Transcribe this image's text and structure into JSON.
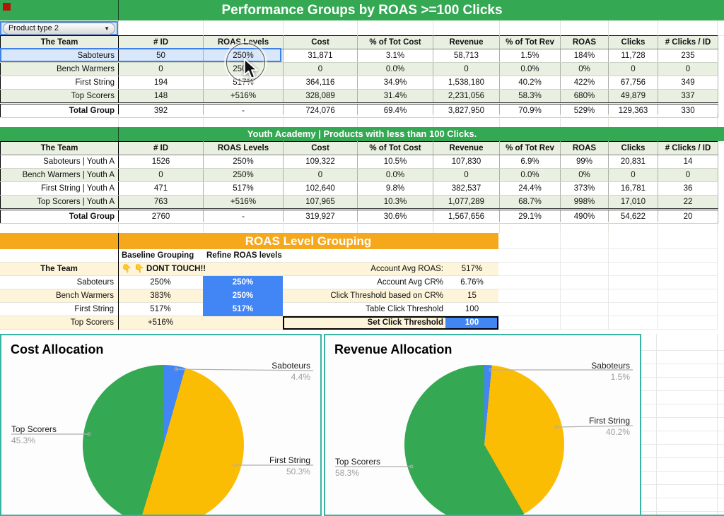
{
  "banner1": "Performance Groups by ROAS >=100 Clicks",
  "dropdown": {
    "value": "Product type 2",
    "arrow_icon": "▼"
  },
  "table1": {
    "columns": [
      "The Team",
      "# ID",
      "ROAS Levels",
      "Cost",
      "% of Tot Cost",
      "Revenue",
      "% of Tot Rev",
      "ROAS",
      "Clicks",
      "# Clicks / ID"
    ],
    "rows": [
      [
        "Saboteurs",
        "50",
        "250%",
        "31,871",
        "3.1%",
        "58,713",
        "1.5%",
        "184%",
        "11,728",
        "235"
      ],
      [
        "Bench Warmers",
        "0",
        "250%",
        "0",
        "0.0%",
        "0",
        "0.0%",
        "0%",
        "0",
        "0"
      ],
      [
        "First String",
        "194",
        "517%",
        "364,116",
        "34.9%",
        "1,538,180",
        "40.2%",
        "422%",
        "67,756",
        "349"
      ],
      [
        "Top Scorers",
        "148",
        "+516%",
        "328,089",
        "31.4%",
        "2,231,056",
        "58.3%",
        "680%",
        "49,879",
        "337"
      ],
      [
        "Total Group",
        "392",
        "-",
        "724,076",
        "69.4%",
        "3,827,950",
        "70.9%",
        "529%",
        "129,363",
        "330"
      ]
    ]
  },
  "table2": {
    "banner": "Youth Academy | Products with less than 100 Clicks.",
    "columns": [
      "The Team",
      "# ID",
      "ROAS Levels",
      "Cost",
      "% of Tot Cost",
      "Revenue",
      "% of Tot Rev",
      "ROAS",
      "Clicks",
      "# Clicks / ID"
    ],
    "rows": [
      [
        "Saboteurs | Youth A",
        "1526",
        "250%",
        "109,322",
        "10.5%",
        "107,830",
        "6.9%",
        "99%",
        "20,831",
        "14"
      ],
      [
        "Bench Warmers | Youth A",
        "0",
        "250%",
        "0",
        "0.0%",
        "0",
        "0.0%",
        "0%",
        "0",
        "0"
      ],
      [
        "First String | Youth A",
        "471",
        "517%",
        "102,640",
        "9.8%",
        "382,537",
        "24.4%",
        "373%",
        "16,781",
        "36"
      ],
      [
        "Top Scorers | Youth A",
        "763",
        "+516%",
        "107,965",
        "10.3%",
        "1,077,289",
        "68.7%",
        "998%",
        "17,010",
        "22"
      ],
      [
        "Total Group",
        "2760",
        "-",
        "319,927",
        "30.6%",
        "1,567,656",
        "29.1%",
        "490%",
        "54,622",
        "20"
      ]
    ]
  },
  "grouping": {
    "banner": "ROAS Level Grouping",
    "baseline_header": "Baseline Grouping",
    "refine_header": "Refine ROAS levels",
    "team_header": "The Team",
    "dont_touch": "👇 👇  DONT TOUCH!!",
    "rows": [
      {
        "team": "Saboteurs",
        "baseline": "250%",
        "refine": "250%"
      },
      {
        "team": "Bench Warmers",
        "baseline": "383%",
        "refine": "250%"
      },
      {
        "team": "First String",
        "baseline": "517%",
        "refine": "517%"
      },
      {
        "team": "Top Scorers",
        "baseline": "+516%",
        "refine": ""
      }
    ],
    "stats": [
      {
        "label": "Account Avg ROAS:",
        "value": "517%"
      },
      {
        "label": "Account Avg CR%",
        "value": "6.76%"
      },
      {
        "label": "Click Threshold based on CR%",
        "value": "15"
      },
      {
        "label": "Table Click Threshold",
        "value": "100"
      },
      {
        "label": "Set Click Threshold",
        "value": "100"
      }
    ]
  },
  "chart_data": [
    {
      "type": "pie",
      "title": "Cost Allocation",
      "labels": [
        "Saboteurs",
        "First String",
        "Top Scorers"
      ],
      "values": [
        4.4,
        50.3,
        45.3
      ],
      "value_labels": [
        "4.4%",
        "50.3%",
        "45.3%"
      ],
      "colors": [
        "#4285f4",
        "#fbbc04",
        "#34a853"
      ],
      "legend_position": "outside-callouts",
      "start_angle_deg": 0
    },
    {
      "type": "pie",
      "title": "Revenue Allocation",
      "labels": [
        "Saboteurs",
        "First String",
        "Top Scorers"
      ],
      "values": [
        1.5,
        40.2,
        58.3
      ],
      "value_labels": [
        "1.5%",
        "40.2%",
        "58.3%"
      ],
      "colors": [
        "#4285f4",
        "#fbbc04",
        "#34a853"
      ],
      "legend_position": "outside-callouts",
      "start_angle_deg": 0
    }
  ],
  "colors": {
    "banner_green": "#34a853",
    "banner_orange": "#f6a81c",
    "row_stripe_green": "#e9f0e1",
    "row_stripe_cream": "#fdf4da",
    "selection_blue": "#4285f4",
    "selected_cell_bg": "#d9e7fa",
    "chart_border_teal": "#3ab3a2",
    "pie_blue": "#4285f4",
    "pie_yellow": "#fbbc04",
    "pie_green": "#34a853"
  }
}
